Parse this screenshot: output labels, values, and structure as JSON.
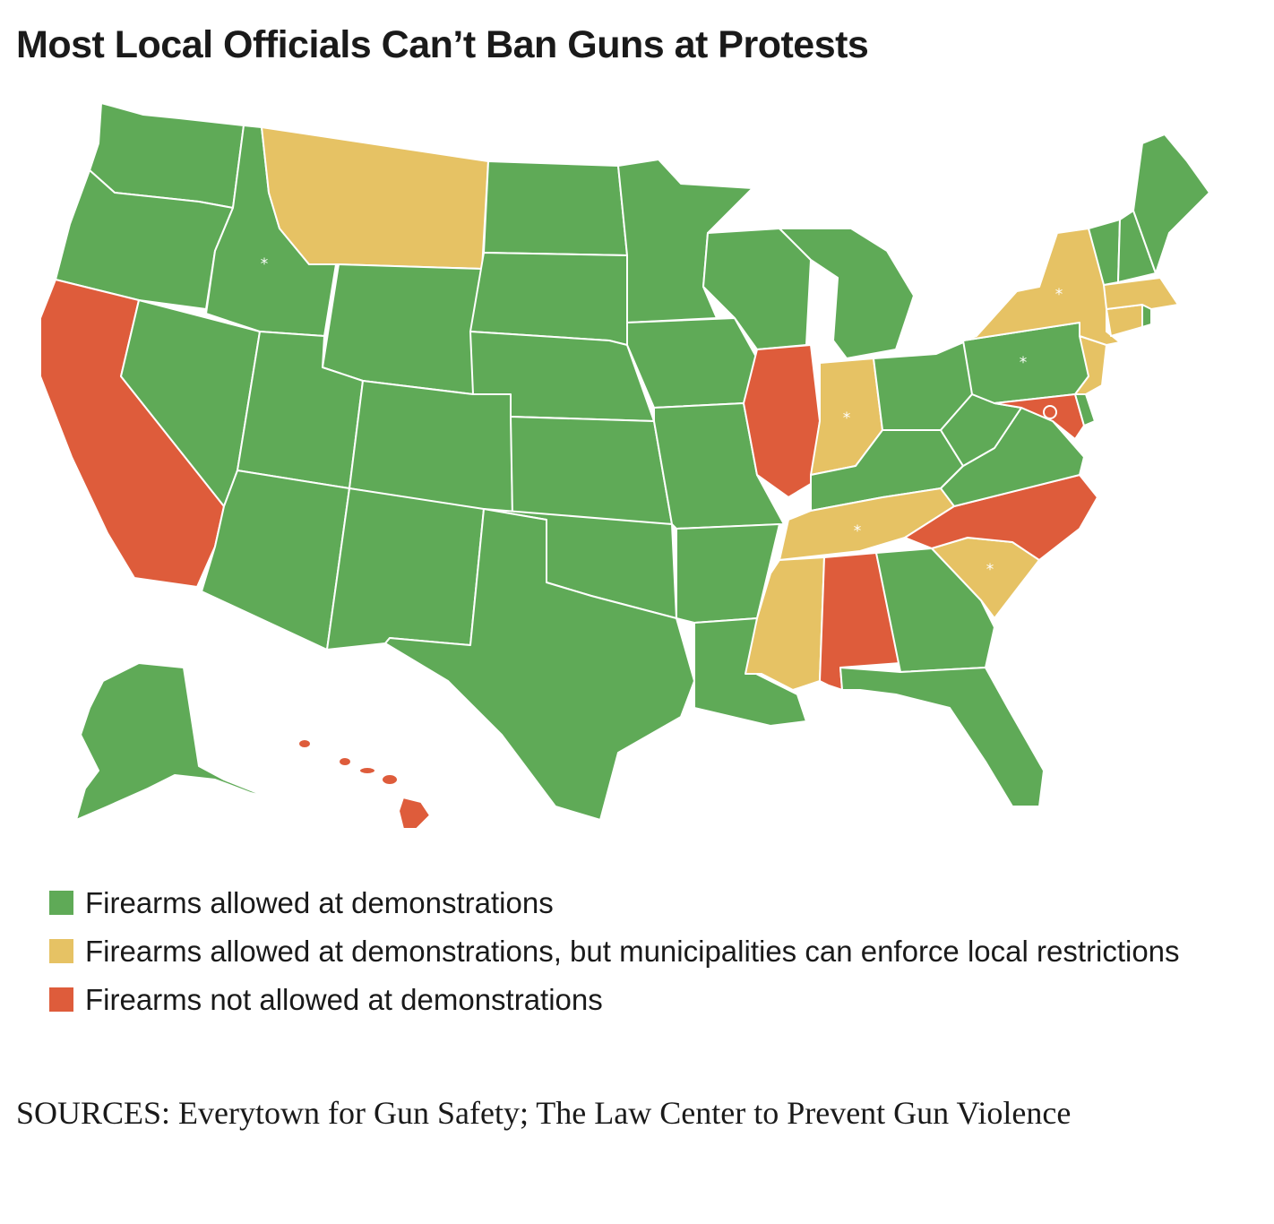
{
  "title": "Most Local Officials Can’t Ban Guns at Protests",
  "colors": {
    "allowed": "#5faa57",
    "allowed_local": "#e6c264",
    "not_allowed": "#de5c3b",
    "border": "#ffffff"
  },
  "legend": [
    {
      "category": "allowed",
      "label": "Firearms allowed at demonstrations"
    },
    {
      "category": "allowed_local",
      "label": "Firearms allowed at demonstrations, but municipalities can enforce local restrictions"
    },
    {
      "category": "not_allowed",
      "label": "Firearms not allowed at demonstrations"
    }
  ],
  "asterisk": "*",
  "states": {
    "WA": "allowed",
    "OR": "allowed",
    "CA": "not_allowed",
    "NV": "allowed",
    "ID": "allowed",
    "MT": "allowed_local",
    "WY": "allowed",
    "UT": "allowed",
    "AZ": "allowed",
    "NM": "allowed",
    "CO": "allowed",
    "ND": "allowed",
    "SD": "allowed",
    "NE": "allowed",
    "KS": "allowed",
    "OK": "allowed",
    "TX": "allowed",
    "MN": "allowed",
    "IA": "allowed",
    "MO": "allowed",
    "AR": "allowed",
    "LA": "allowed",
    "WI": "allowed",
    "IL": "not_allowed",
    "MI": "allowed",
    "IN": "allowed_local",
    "OH": "allowed",
    "KY": "allowed",
    "TN": "allowed_local",
    "MS": "allowed_local",
    "AL": "not_allowed",
    "GA": "allowed",
    "FL": "allowed",
    "SC": "allowed_local",
    "NC": "not_allowed",
    "VA": "allowed",
    "WV": "allowed",
    "PA": "allowed",
    "NY": "allowed_local",
    "NJ": "allowed_local",
    "DE": "allowed",
    "MD": "not_allowed",
    "DC": "not_allowed",
    "CT": "allowed_local",
    "RI": "allowed",
    "MA": "allowed_local",
    "VT": "allowed",
    "NH": "allowed",
    "ME": "allowed",
    "AK": "allowed",
    "HI": "not_allowed"
  },
  "asterisk_states": [
    "ID",
    "IN",
    "PA",
    "NY",
    "TN",
    "SC"
  ],
  "sources": "SOURCES: Everytown for Gun Safety; The Law Center to Prevent Gun Violence"
}
